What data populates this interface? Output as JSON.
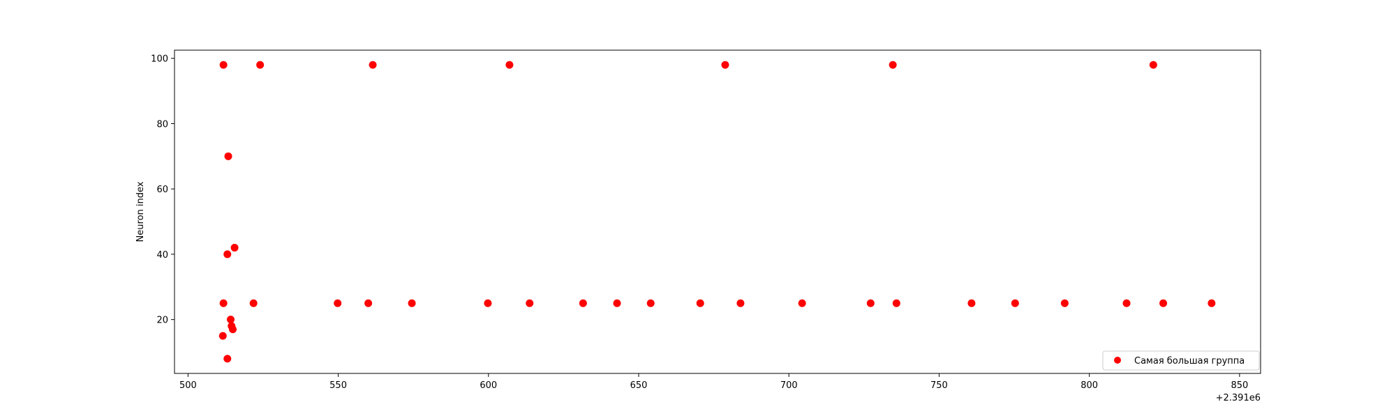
{
  "chart_data": {
    "type": "scatter",
    "title": "",
    "xlabel": "",
    "ylabel": "Neuron index",
    "x_offset_label": "+2.391e6",
    "xlim": [
      495.5,
      857
    ],
    "ylim": [
      3.5,
      102.5
    ],
    "x_ticks": [
      500,
      550,
      600,
      650,
      700,
      750,
      800,
      850
    ],
    "y_ticks": [
      20,
      40,
      60,
      80,
      100
    ],
    "grid": false,
    "legend_position": "lower-right",
    "colors": {
      "marker": "#ff0000"
    },
    "series": [
      {
        "name": "Самая большая группа",
        "points": [
          [
            511.8,
            98
          ],
          [
            524.0,
            98
          ],
          [
            561.5,
            98
          ],
          [
            607.0,
            98
          ],
          [
            678.8,
            98
          ],
          [
            734.6,
            98
          ],
          [
            821.3,
            98
          ],
          [
            513.4,
            70
          ],
          [
            515.5,
            42
          ],
          [
            513.1,
            40
          ],
          [
            511.8,
            25
          ],
          [
            521.8,
            25
          ],
          [
            549.8,
            25
          ],
          [
            560.0,
            25
          ],
          [
            574.5,
            25
          ],
          [
            599.8,
            25
          ],
          [
            613.7,
            25
          ],
          [
            631.5,
            25
          ],
          [
            642.8,
            25
          ],
          [
            654.0,
            25
          ],
          [
            670.5,
            25
          ],
          [
            683.9,
            25
          ],
          [
            704.4,
            25
          ],
          [
            727.2,
            25
          ],
          [
            735.8,
            25
          ],
          [
            760.8,
            25
          ],
          [
            775.3,
            25
          ],
          [
            791.8,
            25
          ],
          [
            812.4,
            25
          ],
          [
            824.6,
            25
          ],
          [
            840.7,
            25
          ],
          [
            514.2,
            20
          ],
          [
            514.5,
            18
          ],
          [
            514.9,
            17
          ],
          [
            511.6,
            15
          ],
          [
            513.1,
            8
          ]
        ]
      }
    ]
  }
}
